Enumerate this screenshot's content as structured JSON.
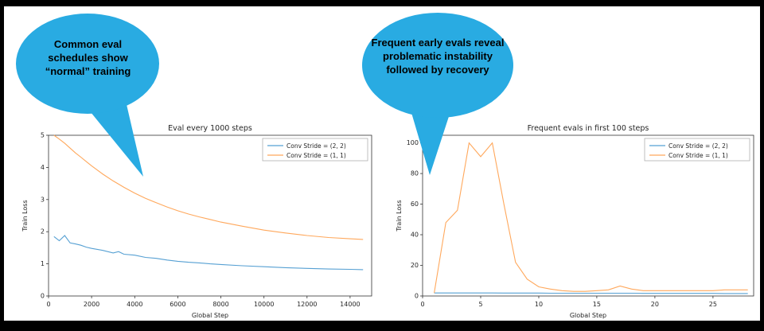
{
  "frame": {
    "color": "#000000",
    "slide_bg": "#ffffff"
  },
  "bubbles": [
    {
      "text": "Common eval schedules show “normal” training",
      "color": "#29abe2"
    },
    {
      "text": "Frequent early evals reveal problematic instability followed by recovery",
      "color": "#29abe2"
    }
  ],
  "chart_data": [
    {
      "type": "line",
      "title": "Eval every 1000 steps",
      "xlabel": "Global Step",
      "ylabel": "Train Loss",
      "xlim": [
        0,
        15000
      ],
      "ylim": [
        0,
        5
      ],
      "xticks": [
        0,
        2000,
        4000,
        6000,
        8000,
        10000,
        12000,
        14000
      ],
      "yticks": [
        0,
        1,
        2,
        3,
        4,
        5
      ],
      "grid": false,
      "legend_position": "upper right",
      "series": [
        {
          "name": "Conv Stride = (2, 2)",
          "color": "#56a0d3",
          "x": [
            250,
            500,
            750,
            1000,
            1250,
            1500,
            1750,
            2000,
            2500,
            3000,
            3250,
            3500,
            4000,
            4500,
            5000,
            5500,
            6000,
            6500,
            7000,
            7500,
            8000,
            9000,
            10000,
            11000,
            12000,
            13000,
            14000,
            14600
          ],
          "y": [
            1.85,
            1.72,
            1.88,
            1.65,
            1.62,
            1.58,
            1.52,
            1.48,
            1.42,
            1.34,
            1.38,
            1.3,
            1.27,
            1.2,
            1.17,
            1.12,
            1.08,
            1.05,
            1.03,
            1.0,
            0.98,
            0.94,
            0.91,
            0.88,
            0.86,
            0.84,
            0.83,
            0.82
          ]
        },
        {
          "name": "Conv Stride = (1, 1)",
          "color": "#ffa85c",
          "x": [
            250,
            500,
            750,
            1000,
            1250,
            1500,
            1750,
            2000,
            2500,
            3000,
            3250,
            3500,
            4000,
            4500,
            5000,
            5500,
            6000,
            6500,
            7000,
            7500,
            8000,
            9000,
            10000,
            11000,
            12000,
            13000,
            14000,
            14600
          ],
          "y": [
            5.0,
            4.88,
            4.75,
            4.6,
            4.45,
            4.32,
            4.18,
            4.05,
            3.8,
            3.58,
            3.48,
            3.38,
            3.2,
            3.04,
            2.9,
            2.77,
            2.65,
            2.55,
            2.46,
            2.38,
            2.3,
            2.17,
            2.05,
            1.96,
            1.88,
            1.82,
            1.78,
            1.76
          ]
        }
      ]
    },
    {
      "type": "line",
      "title": "Frequent evals in first 100 steps",
      "xlabel": "Global Step",
      "ylabel": "Train Loss",
      "xlim": [
        0,
        28.5
      ],
      "ylim": [
        0,
        105
      ],
      "xticks": [
        0,
        5,
        10,
        15,
        20,
        25
      ],
      "yticks": [
        0,
        20,
        40,
        60,
        80,
        100
      ],
      "grid": false,
      "legend_position": "upper right",
      "series": [
        {
          "name": "Conv Stride = (2, 2)",
          "color": "#56a0d3",
          "x": [
            1,
            2,
            3,
            4,
            5,
            6,
            7,
            8,
            9,
            10,
            11,
            12,
            13,
            14,
            15,
            16,
            17,
            18,
            19,
            20,
            21,
            22,
            23,
            24,
            25,
            26,
            27,
            28
          ],
          "y": [
            2.0,
            2.0,
            2.0,
            2.0,
            2.0,
            2.0,
            1.9,
            1.9,
            1.9,
            1.9,
            1.8,
            1.8,
            1.8,
            1.8,
            1.8,
            1.8,
            1.8,
            1.8,
            1.7,
            1.7,
            1.7,
            1.7,
            1.7,
            1.7,
            1.7,
            1.6,
            1.6,
            1.6
          ]
        },
        {
          "name": "Conv Stride = (1, 1)",
          "color": "#ffa85c",
          "x": [
            1,
            2,
            3,
            4,
            5,
            6,
            7,
            8,
            9,
            10,
            11,
            12,
            13,
            14,
            15,
            16,
            17,
            18,
            19,
            20,
            21,
            22,
            23,
            24,
            25,
            26,
            27,
            28
          ],
          "y": [
            2.0,
            48,
            56,
            100,
            91,
            100,
            60,
            22,
            11,
            6,
            4.5,
            3.5,
            3,
            3,
            3.5,
            4,
            6.5,
            4.5,
            3.5,
            3.5,
            3.5,
            3.5,
            3.5,
            3.5,
            3.5,
            4,
            4,
            4
          ]
        }
      ]
    }
  ]
}
